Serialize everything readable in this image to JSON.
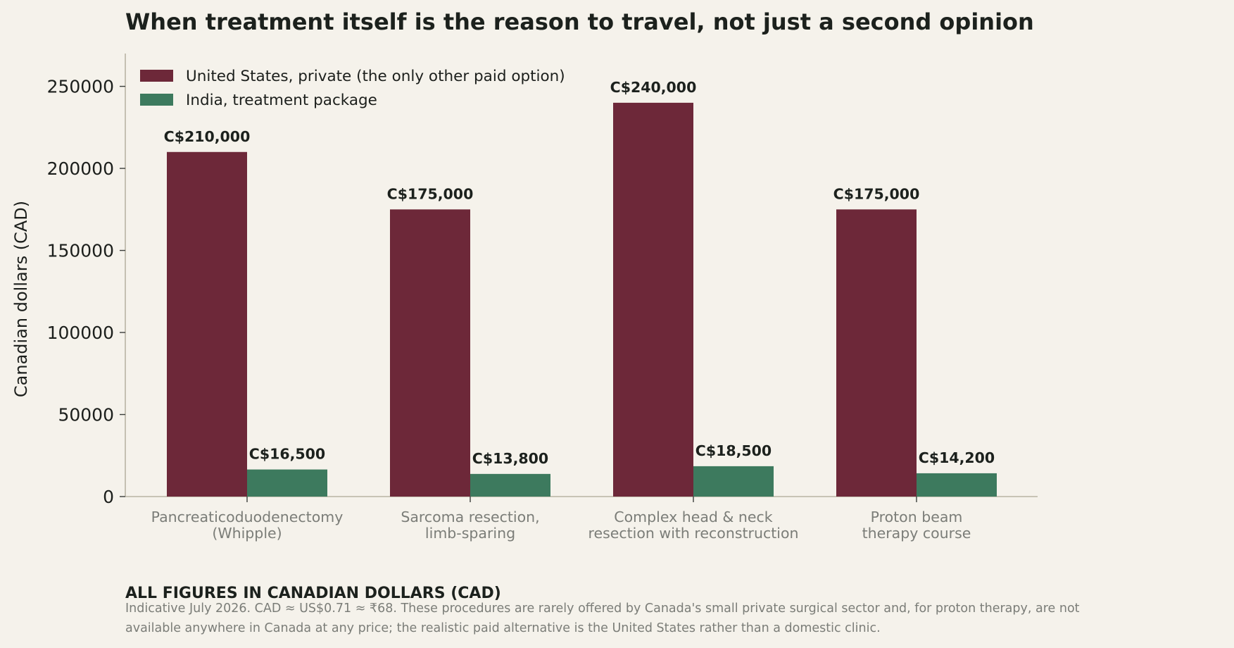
{
  "chart_data": {
    "type": "bar",
    "title": "When treatment itself is the reason to travel, not just a second opinion",
    "ylabel": "Canadian dollars (CAD)",
    "xlabel": "",
    "ylim": [
      0,
      270000
    ],
    "yticks": [
      0,
      50000,
      100000,
      150000,
      200000,
      250000
    ],
    "grid": false,
    "legend_position": "top-left",
    "categories": [
      [
        "Pancreaticoduodenectomy",
        "(Whipple)"
      ],
      [
        "Sarcoma resection,",
        "limb-sparing"
      ],
      [
        "Complex head & neck",
        "resection with reconstruction"
      ],
      [
        "Proton beam",
        "therapy course"
      ]
    ],
    "series": [
      {
        "name": "United States, private (the only other paid option)",
        "color": "#6d2839",
        "values": [
          210000,
          175000,
          240000,
          175000
        ],
        "labels": [
          "C$210,000",
          "C$175,000",
          "C$240,000",
          "C$175,000"
        ]
      },
      {
        "name": "India, treatment package",
        "color": "#3d7a5e",
        "values": [
          16500,
          13800,
          18500,
          14200
        ],
        "labels": [
          "C$16,500",
          "C$13,800",
          "C$18,500",
          "C$14,200"
        ]
      }
    ]
  },
  "notes": {
    "heading": "ALL FIGURES IN CANADIAN DOLLARS (CAD)",
    "body_line1": "Indicative July 2026. CAD ≈ US$0.71 ≈ ₹68. These procedures are rarely offered by Canada's small private surgical sector and, for proton therapy, are not",
    "body_line2": "available anywhere in Canada at any price; the realistic paid alternative is the United States rather than a domestic clinic."
  }
}
